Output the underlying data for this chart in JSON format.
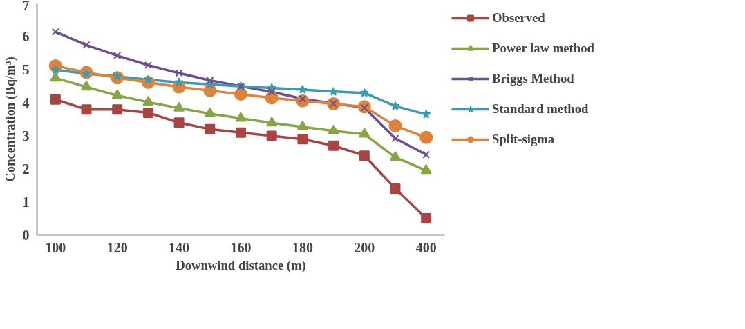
{
  "chart_data": {
    "type": "line",
    "xlabel": "Downwind distance (m)",
    "ylabel": "Concentration (Bq/m³)",
    "categories": [
      "100",
      null,
      "120",
      null,
      "140",
      null,
      "160",
      null,
      "180",
      null,
      "200",
      null,
      "400"
    ],
    "ylim": [
      0,
      7
    ],
    "yticks": [
      0,
      1,
      2,
      3,
      4,
      5,
      6,
      7
    ],
    "grid": false,
    "legend": "right",
    "series": [
      {
        "name": "Observed",
        "color": "#a94442",
        "marker": "square",
        "values": [
          4.1,
          3.8,
          3.8,
          3.7,
          3.4,
          3.2,
          3.1,
          3.0,
          2.9,
          2.7,
          2.4,
          1.4,
          0.5
        ]
      },
      {
        "name": "Power law method",
        "color": "#86a544",
        "marker": "triangle",
        "values": [
          4.75,
          4.48,
          4.22,
          4.02,
          3.84,
          3.67,
          3.53,
          3.39,
          3.27,
          3.15,
          3.05,
          2.35,
          1.95
        ]
      },
      {
        "name": "Briggs Method",
        "color": "#6b4f95",
        "marker": "cross",
        "values": [
          6.15,
          5.75,
          5.43,
          5.14,
          4.9,
          4.68,
          4.5,
          4.33,
          4.12,
          3.98,
          3.85,
          2.92,
          2.43
        ]
      },
      {
        "name": "Standard method",
        "color": "#3b9bb3",
        "marker": "star",
        "values": [
          5.0,
          4.88,
          4.8,
          4.7,
          4.62,
          4.56,
          4.5,
          4.45,
          4.4,
          4.34,
          4.3,
          3.9,
          3.65
        ]
      },
      {
        "name": "Split-sigma",
        "color": "#df833a",
        "marker": "circle",
        "values": [
          5.12,
          4.92,
          4.76,
          4.62,
          4.48,
          4.37,
          4.26,
          4.15,
          4.06,
          3.97,
          3.88,
          3.3,
          2.95
        ]
      }
    ]
  }
}
